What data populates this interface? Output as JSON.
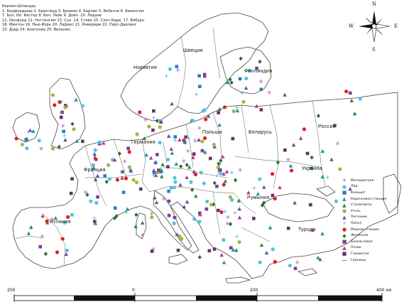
{
  "notes": [
    "Берлин-Шпандау",
    "1. Бедфордшир 2. Брентвуд 3. Бремен 4. Берлин 5. Bellevue 6. Бекингем",
    "7. Бол. Ил. Кестер 8. Бел. Лейк 9. Дойч. 10. Ладзие",
    "11. Оксфорд 12. Ноттингем 13. Сол. 14. Стейн 15. Сент-Бари. 17. Вобурн",
    "18. Минтон 19. Нью-Йорк 20. Лафакс 21. Инверари 22. Пирс-Дарлинг",
    "23. Дувр 24. Анатолия 25. Вильнюс"
  ],
  "countries": {
    "sweden": "Швеция",
    "norway": "Норвегия",
    "finland": "Финляндия",
    "poland": "Польша",
    "belarus": "Беларусь",
    "russia": "Россия",
    "germany": "Германия",
    "france": "Франция",
    "ukraine": "Украина",
    "romania": "Румыния",
    "spain": "Испания",
    "turkey": "Турция"
  },
  "legend": [
    {
      "label": "Метеоритная",
      "symbol": "asterisk",
      "color": "#9b4fb6"
    },
    {
      "label": "Лёд",
      "symbol": "circle",
      "color": "#4fc3e0"
    },
    {
      "label": "Кальцит",
      "symbol": "square",
      "color": "#2c7fb8"
    },
    {
      "label": "Коричневая станция",
      "symbol": "triangle",
      "color": "#1f9a8a"
    },
    {
      "label": "Сталагмиты",
      "symbol": "triangle",
      "color": "#2b8a3e"
    },
    {
      "label": "Уголь",
      "symbol": "circle",
      "color": "#9fb83a"
    },
    {
      "label": "Песчаник",
      "symbol": "triangle",
      "color": "#6a51a3"
    },
    {
      "label": "Пепел",
      "symbol": "plus",
      "color": "#17b8d0"
    },
    {
      "label": "Медная станция",
      "symbol": "circle",
      "color": "#e0201b"
    },
    {
      "label": "Железная",
      "symbol": "diamond",
      "color": "#2a6e3f"
    },
    {
      "label": "Базальтовая",
      "symbol": "square",
      "color": "#7a3f98"
    },
    {
      "label": "Почва",
      "symbol": "triangle",
      "color": "#b23a8a"
    },
    {
      "label": "Глинистая",
      "symbol": "square",
      "color": "#6b2f6b"
    },
    {
      "label": "Границы",
      "symbol": "line",
      "color": "#000000"
    }
  ],
  "scale": {
    "labels": [
      "200",
      "0",
      "200",
      "400 км"
    ]
  },
  "compass": {
    "n": "N",
    "s": "S",
    "e": "E",
    "w": "W"
  },
  "colors": {
    "land_border": "#444444",
    "sea": "#ffffff",
    "land": "#ffffff"
  }
}
